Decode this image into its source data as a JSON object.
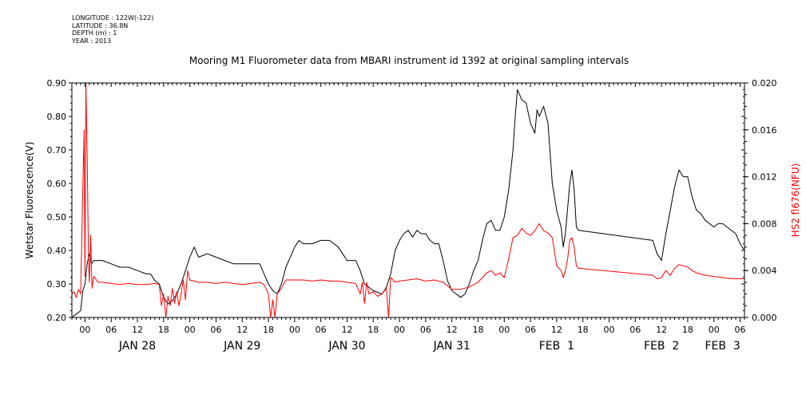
{
  "meta": {
    "longitude": "LONGITUDE : 122W(-122)",
    "latitude": "LATITUDE : 36.8N",
    "depth": "DEPTH (m) : 1",
    "year": "YEAR : 2013"
  },
  "chart_data": {
    "type": "line",
    "title": "Mooring M1 Fluorometer data from MBARI instrument id 1392 at original sampling intervals",
    "ylabel_left": "Wetstar Fluorescence(V)",
    "ylabel_right": "HS2 fl676(NFU)",
    "x_unit": "hours since Jan 28 00:00",
    "xlim": [
      -3,
      151
    ],
    "ylim_left": [
      0.2,
      0.9
    ],
    "ylim_right": [
      0.0,
      0.02
    ],
    "yticks_left": [
      "0.20",
      "0.30",
      "0.40",
      "0.50",
      "0.60",
      "0.70",
      "0.80",
      "0.90"
    ],
    "yticks_right": [
      "0.000",
      "0.004",
      "0.008",
      "0.012",
      "0.016",
      "0.020"
    ],
    "hour_ticks": [
      "00",
      "06",
      "12",
      "18",
      "00",
      "06",
      "12",
      "18",
      "00",
      "06",
      "12",
      "18",
      "00",
      "06",
      "12",
      "18",
      "00",
      "06",
      "12",
      "18",
      "00",
      "06",
      "12",
      "18",
      "00",
      "06"
    ],
    "day_labels": [
      {
        "label": "JAN 28",
        "hour": 12
      },
      {
        "label": "JAN 29",
        "hour": 36
      },
      {
        "label": "JAN 30",
        "hour": 60
      },
      {
        "label": "JAN 31",
        "hour": 84
      },
      {
        "label": "FEB  1",
        "hour": 108
      },
      {
        "label": "FEB  2",
        "hour": 132
      },
      {
        "label": "FEB  3",
        "hour": 146
      }
    ],
    "grid": false,
    "series": [
      {
        "name": "Wetstar Fluorescence(V)",
        "axis": "left",
        "color": "#000000",
        "points": [
          [
            -3,
            0.2
          ],
          [
            -2,
            0.21
          ],
          [
            -1,
            0.22
          ],
          [
            -0.5,
            0.28
          ],
          [
            0,
            0.3
          ],
          [
            0.5,
            0.36
          ],
          [
            1,
            0.39
          ],
          [
            1.5,
            0.36
          ],
          [
            2,
            0.37
          ],
          [
            4,
            0.37
          ],
          [
            6,
            0.36
          ],
          [
            8,
            0.35
          ],
          [
            10,
            0.35
          ],
          [
            12,
            0.34
          ],
          [
            14,
            0.33
          ],
          [
            15,
            0.33
          ],
          [
            16,
            0.31
          ],
          [
            17,
            0.3
          ],
          [
            18,
            0.26
          ],
          [
            19,
            0.24
          ],
          [
            20,
            0.25
          ],
          [
            21,
            0.27
          ],
          [
            22,
            0.3
          ],
          [
            23,
            0.34
          ],
          [
            24,
            0.38
          ],
          [
            25,
            0.41
          ],
          [
            26,
            0.38
          ],
          [
            28,
            0.39
          ],
          [
            30,
            0.38
          ],
          [
            32,
            0.37
          ],
          [
            34,
            0.36
          ],
          [
            36,
            0.36
          ],
          [
            38,
            0.36
          ],
          [
            40,
            0.36
          ],
          [
            41,
            0.33
          ],
          [
            42,
            0.3
          ],
          [
            43,
            0.28
          ],
          [
            44,
            0.27
          ],
          [
            45,
            0.3
          ],
          [
            46,
            0.35
          ],
          [
            47,
            0.38
          ],
          [
            48,
            0.41
          ],
          [
            49,
            0.43
          ],
          [
            50,
            0.42
          ],
          [
            52,
            0.42
          ],
          [
            54,
            0.43
          ],
          [
            56,
            0.43
          ],
          [
            58,
            0.41
          ],
          [
            59,
            0.39
          ],
          [
            60,
            0.37
          ],
          [
            62,
            0.37
          ],
          [
            63,
            0.34
          ],
          [
            64,
            0.3
          ],
          [
            66,
            0.28
          ],
          [
            68,
            0.27
          ],
          [
            69,
            0.29
          ],
          [
            70,
            0.33
          ],
          [
            71,
            0.4
          ],
          [
            72,
            0.43
          ],
          [
            73,
            0.45
          ],
          [
            74,
            0.46
          ],
          [
            75,
            0.44
          ],
          [
            76,
            0.46
          ],
          [
            77,
            0.45
          ],
          [
            78,
            0.45
          ],
          [
            79,
            0.43
          ],
          [
            80,
            0.42
          ],
          [
            81,
            0.42
          ],
          [
            82,
            0.37
          ],
          [
            83,
            0.31
          ],
          [
            84,
            0.28
          ],
          [
            86,
            0.26
          ],
          [
            87,
            0.27
          ],
          [
            88,
            0.3
          ],
          [
            89,
            0.34
          ],
          [
            90,
            0.37
          ],
          [
            91,
            0.43
          ],
          [
            92,
            0.48
          ],
          [
            93,
            0.49
          ],
          [
            94,
            0.46
          ],
          [
            95,
            0.46
          ],
          [
            96,
            0.5
          ],
          [
            97,
            0.58
          ],
          [
            98,
            0.7
          ],
          [
            98.5,
            0.8
          ],
          [
            99,
            0.88
          ],
          [
            100,
            0.85
          ],
          [
            101,
            0.84
          ],
          [
            102,
            0.78
          ],
          [
            103,
            0.75
          ],
          [
            103.5,
            0.82
          ],
          [
            104,
            0.8
          ],
          [
            105,
            0.83
          ],
          [
            106,
            0.78
          ],
          [
            107,
            0.6
          ],
          [
            108,
            0.52
          ],
          [
            109,
            0.47
          ],
          [
            109.5,
            0.41
          ],
          [
            110,
            0.45
          ],
          [
            111,
            0.6
          ],
          [
            111.5,
            0.64
          ],
          [
            112,
            0.58
          ],
          [
            112.5,
            0.47
          ],
          [
            113,
            0.46
          ],
          [
            130,
            0.43
          ],
          [
            131,
            0.39
          ],
          [
            132,
            0.37
          ],
          [
            133,
            0.45
          ],
          [
            134,
            0.52
          ],
          [
            135,
            0.59
          ],
          [
            136,
            0.64
          ],
          [
            137,
            0.62
          ],
          [
            138,
            0.62
          ],
          [
            139,
            0.56
          ],
          [
            140,
            0.52
          ],
          [
            141,
            0.51
          ],
          [
            142,
            0.49
          ],
          [
            144,
            0.47
          ],
          [
            145,
            0.48
          ],
          [
            146,
            0.48
          ],
          [
            147,
            0.47
          ],
          [
            149,
            0.45
          ],
          [
            150,
            0.42
          ],
          [
            151,
            0.4
          ]
        ]
      },
      {
        "name": "HS2 fl676(NFU)",
        "axis": "right",
        "color": "#ff0000",
        "points": [
          [
            -3,
            0.002
          ],
          [
            -2.5,
            0.0022
          ],
          [
            -2,
            0.0017
          ],
          [
            -1.5,
            0.0024
          ],
          [
            -1,
            0.002
          ],
          [
            -0.5,
            0.011
          ],
          [
            -0.2,
            0.016
          ],
          [
            0,
            0.0035
          ],
          [
            0.2,
            0.02
          ],
          [
            0.5,
            0.014
          ],
          [
            0.8,
            0.005
          ],
          [
            1,
            0.003
          ],
          [
            1.3,
            0.007
          ],
          [
            1.6,
            0.0025
          ],
          [
            2,
            0.0035
          ],
          [
            3,
            0.003
          ],
          [
            4,
            0.003
          ],
          [
            6,
            0.0029
          ],
          [
            8,
            0.0028
          ],
          [
            10,
            0.0029
          ],
          [
            12,
            0.0028
          ],
          [
            14,
            0.0028
          ],
          [
            16,
            0.0029
          ],
          [
            17,
            0.0028
          ],
          [
            17.5,
            0.001
          ],
          [
            18,
            0.002
          ],
          [
            18.5,
            0.0
          ],
          [
            19,
            0.0018
          ],
          [
            19.5,
            0.001
          ],
          [
            20,
            0.0025
          ],
          [
            20.5,
            0.0012
          ],
          [
            21,
            0.0022
          ],
          [
            21.5,
            0.001
          ],
          [
            22,
            0.002
          ],
          [
            22.5,
            0.0032
          ],
          [
            23,
            0.0015
          ],
          [
            23.5,
            0.004
          ],
          [
            24,
            0.0032
          ],
          [
            26,
            0.003
          ],
          [
            28,
            0.003
          ],
          [
            30,
            0.0029
          ],
          [
            32,
            0.003
          ],
          [
            34,
            0.0029
          ],
          [
            36,
            0.0028
          ],
          [
            38,
            0.0029
          ],
          [
            40,
            0.003
          ],
          [
            41,
            0.0028
          ],
          [
            42,
            0.002
          ],
          [
            42.5,
            0.0
          ],
          [
            43,
            0.0015
          ],
          [
            43.5,
            0.0
          ],
          [
            44,
            0.002
          ],
          [
            45,
            0.0025
          ],
          [
            46,
            0.0032
          ],
          [
            48,
            0.0032
          ],
          [
            50,
            0.0032
          ],
          [
            52,
            0.0031
          ],
          [
            54,
            0.0032
          ],
          [
            56,
            0.0031
          ],
          [
            58,
            0.0031
          ],
          [
            60,
            0.003
          ],
          [
            62,
            0.0029
          ],
          [
            63,
            0.002
          ],
          [
            63.5,
            0.003
          ],
          [
            64,
            0.0012
          ],
          [
            64.5,
            0.003
          ],
          [
            65,
            0.002
          ],
          [
            66,
            0.0022
          ],
          [
            67,
            0.0018
          ],
          [
            68,
            0.002
          ],
          [
            69,
            0.0025
          ],
          [
            69.5,
            0.0
          ],
          [
            70,
            0.0034
          ],
          [
            71,
            0.003
          ],
          [
            72,
            0.0031
          ],
          [
            74,
            0.0032
          ],
          [
            76,
            0.0033
          ],
          [
            78,
            0.0031
          ],
          [
            80,
            0.0032
          ],
          [
            82,
            0.003
          ],
          [
            84,
            0.0024
          ],
          [
            86,
            0.0024
          ],
          [
            88,
            0.0026
          ],
          [
            90,
            0.003
          ],
          [
            92,
            0.0038
          ],
          [
            93,
            0.004
          ],
          [
            94,
            0.0036
          ],
          [
            95,
            0.0038
          ],
          [
            96,
            0.0034
          ],
          [
            97,
            0.005
          ],
          [
            98,
            0.0068
          ],
          [
            99,
            0.007
          ],
          [
            100,
            0.0076
          ],
          [
            101,
            0.0072
          ],
          [
            102,
            0.007
          ],
          [
            103,
            0.0074
          ],
          [
            104,
            0.008
          ],
          [
            105,
            0.0074
          ],
          [
            106,
            0.0072
          ],
          [
            107,
            0.0068
          ],
          [
            108,
            0.0044
          ],
          [
            109,
            0.004
          ],
          [
            109.5,
            0.0034
          ],
          [
            110,
            0.004
          ],
          [
            110.5,
            0.005
          ],
          [
            111,
            0.0066
          ],
          [
            111.5,
            0.0068
          ],
          [
            112,
            0.006
          ],
          [
            112.5,
            0.0044
          ],
          [
            113,
            0.0042
          ],
          [
            130,
            0.0036
          ],
          [
            131,
            0.0033
          ],
          [
            132,
            0.0034
          ],
          [
            133,
            0.004
          ],
          [
            134,
            0.0036
          ],
          [
            135,
            0.0042
          ],
          [
            136,
            0.0045
          ],
          [
            137,
            0.0044
          ],
          [
            138,
            0.0043
          ],
          [
            139,
            0.004
          ],
          [
            140,
            0.0038
          ],
          [
            141,
            0.0037
          ],
          [
            142,
            0.0036
          ],
          [
            144,
            0.0035
          ],
          [
            146,
            0.0034
          ],
          [
            148,
            0.0033
          ],
          [
            150,
            0.0033
          ],
          [
            151,
            0.0033
          ]
        ]
      }
    ]
  }
}
